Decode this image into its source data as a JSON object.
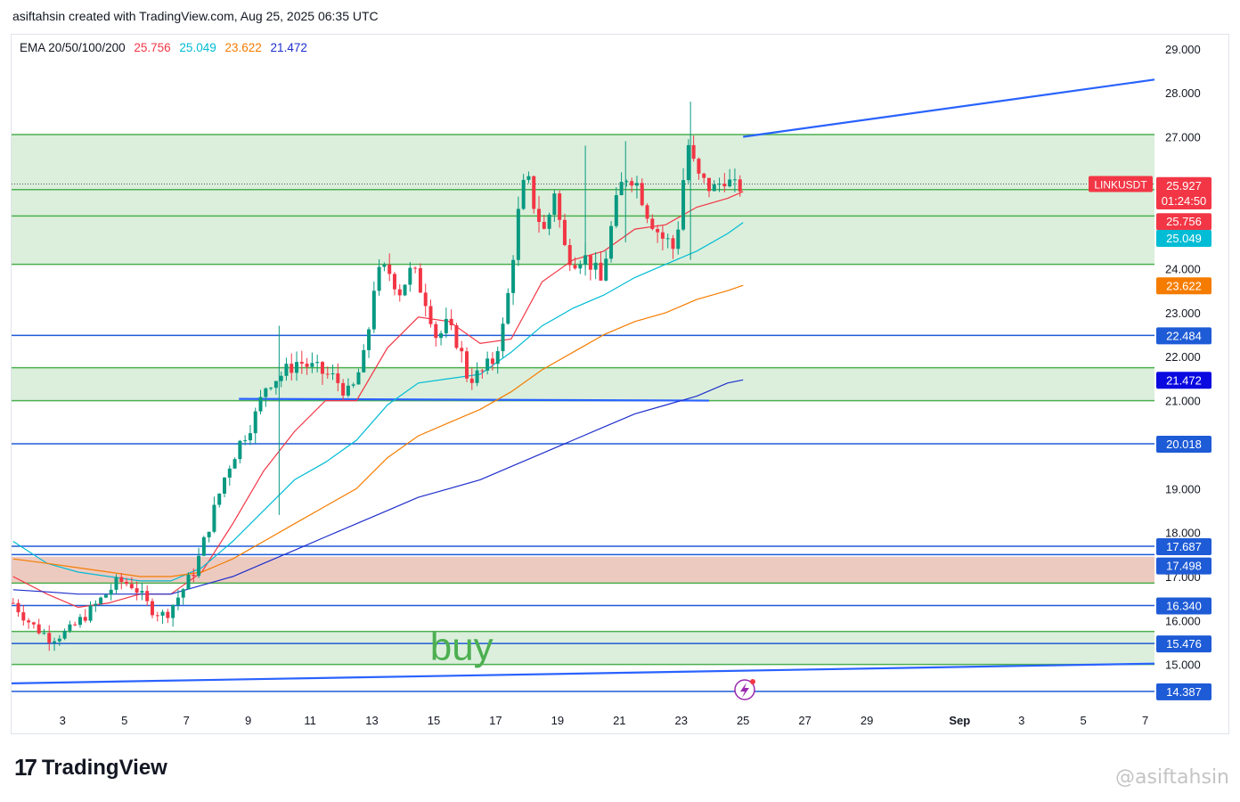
{
  "header": {
    "attribution": "asiftahsin created with TradingView.com, Aug 25, 2025 06:35 UTC"
  },
  "legend": {
    "label": "EMA 20/50/100/200",
    "values": [
      {
        "value": "25.756",
        "color": "#f23645"
      },
      {
        "value": "25.049",
        "color": "#00bcd4"
      },
      {
        "value": "23.622",
        "color": "#f57c00"
      },
      {
        "value": "21.472",
        "color": "#1e2ecc"
      }
    ]
  },
  "footer": {
    "brand": "TradingView",
    "watermark": "@asiftahsin"
  },
  "colors": {
    "up": "#089981",
    "down": "#f23645",
    "zone_green": "#4caf50",
    "zone_red": "#c85a3c",
    "hline": "#1e5bd6"
  },
  "chart_data": {
    "type": "candlestick",
    "symbol": "LINKUSDT",
    "countdown": "01:24:50",
    "last_price": 25.927,
    "ylim": [
      14.0,
      29.3
    ],
    "y_ticks": [
      15,
      16,
      17,
      18,
      19,
      20,
      21,
      22,
      23,
      24,
      25,
      26,
      27,
      28,
      29
    ],
    "y_tick_labels": [
      "15.000",
      "16.000",
      "17.000",
      "18.000",
      "19.000",
      "20.000",
      "21.000",
      "22.000",
      "23.000",
      "24.000",
      "25.000",
      "26.000",
      "27.000",
      "28.000",
      "29.000"
    ],
    "x_ticks": [
      {
        "label": "3",
        "day": 3
      },
      {
        "label": "5",
        "day": 5
      },
      {
        "label": "7",
        "day": 7
      },
      {
        "label": "9",
        "day": 9
      },
      {
        "label": "11",
        "day": 11
      },
      {
        "label": "13",
        "day": 13
      },
      {
        "label": "15",
        "day": 15
      },
      {
        "label": "17",
        "day": 17
      },
      {
        "label": "19",
        "day": 19
      },
      {
        "label": "21",
        "day": 21
      },
      {
        "label": "23",
        "day": 23
      },
      {
        "label": "25",
        "day": 25
      },
      {
        "label": "27",
        "day": 27
      },
      {
        "label": "29",
        "day": 29
      },
      {
        "label": "Sep",
        "day": 32
      },
      {
        "label": "3",
        "day": 34
      },
      {
        "label": "5",
        "day": 36
      },
      {
        "label": "7",
        "day": 38
      }
    ],
    "x_range_days": [
      1.35,
      38.3
    ],
    "price_path": [
      [
        1.4,
        16.4
      ],
      [
        2.0,
        15.9
      ],
      [
        2.6,
        15.6
      ],
      [
        3.2,
        15.75
      ],
      [
        4.0,
        16.3
      ],
      [
        4.8,
        16.9
      ],
      [
        5.3,
        16.8
      ],
      [
        5.8,
        16.3
      ],
      [
        6.3,
        16.1
      ],
      [
        6.8,
        16.6
      ],
      [
        7.3,
        17.2
      ],
      [
        7.8,
        18.3
      ],
      [
        8.3,
        19.4
      ],
      [
        8.7,
        20.0
      ],
      [
        9.2,
        20.6
      ],
      [
        9.6,
        21.4
      ],
      [
        10.1,
        21.6
      ],
      [
        10.6,
        21.9
      ],
      [
        11.2,
        21.7
      ],
      [
        11.8,
        21.5
      ],
      [
        12.3,
        21.1
      ],
      [
        12.8,
        22.1
      ],
      [
        13.1,
        23.8
      ],
      [
        13.5,
        24.0
      ],
      [
        13.9,
        23.5
      ],
      [
        14.3,
        24.0
      ],
      [
        14.8,
        23.2
      ],
      [
        15.1,
        22.4
      ],
      [
        15.4,
        22.7
      ],
      [
        15.8,
        22.3
      ],
      [
        16.1,
        21.5
      ],
      [
        16.5,
        21.6
      ],
      [
        16.9,
        21.9
      ],
      [
        17.3,
        22.8
      ],
      [
        17.5,
        24.0
      ],
      [
        17.8,
        25.6
      ],
      [
        18.0,
        26.1
      ],
      [
        18.3,
        25.3
      ],
      [
        18.6,
        24.8
      ],
      [
        18.9,
        25.8
      ],
      [
        19.2,
        24.5
      ],
      [
        19.5,
        24.2
      ],
      [
        19.8,
        24.3
      ],
      [
        20.1,
        24.1
      ],
      [
        20.4,
        23.7
      ],
      [
        20.7,
        24.8
      ],
      [
        21.0,
        25.8
      ],
      [
        21.3,
        26.2
      ],
      [
        21.6,
        25.9
      ],
      [
        21.9,
        25.3
      ],
      [
        22.2,
        24.9
      ],
      [
        22.4,
        24.7
      ],
      [
        22.6,
        24.6
      ],
      [
        22.8,
        24.4
      ],
      [
        23.0,
        25.6
      ],
      [
        23.2,
        26.9
      ],
      [
        23.5,
        26.1
      ],
      [
        23.8,
        25.9
      ],
      [
        24.1,
        25.8
      ],
      [
        24.4,
        26.1
      ],
      [
        24.7,
        25.8
      ],
      [
        25.0,
        25.927
      ]
    ],
    "highs_lows": [
      {
        "day": 23.3,
        "high": 27.8,
        "low": 24.2
      },
      {
        "day": 19.9,
        "high": 26.8,
        "low": 24.0
      },
      {
        "day": 10.0,
        "high": 22.7,
        "low": 18.4
      },
      {
        "day": 21.2,
        "high": 26.9,
        "low": 24.6
      }
    ],
    "series": [
      {
        "name": "EMA 20",
        "color": "#f23645",
        "last": 25.756,
        "points": [
          [
            1.4,
            17.0
          ],
          [
            2.5,
            16.6
          ],
          [
            3.5,
            16.3
          ],
          [
            4.5,
            16.4
          ],
          [
            5.5,
            16.6
          ],
          [
            6.5,
            16.6
          ],
          [
            7.5,
            17.1
          ],
          [
            8.5,
            18.2
          ],
          [
            9.5,
            19.4
          ],
          [
            10.5,
            20.3
          ],
          [
            11.5,
            21.0
          ],
          [
            12.5,
            21.0
          ],
          [
            13.5,
            22.2
          ],
          [
            14.5,
            22.9
          ],
          [
            15.5,
            22.8
          ],
          [
            16.5,
            22.3
          ],
          [
            17.5,
            22.4
          ],
          [
            18.5,
            23.7
          ],
          [
            19.5,
            24.2
          ],
          [
            20.5,
            24.4
          ],
          [
            21.5,
            24.9
          ],
          [
            22.5,
            25.0
          ],
          [
            23.5,
            25.4
          ],
          [
            24.5,
            25.6
          ],
          [
            25.0,
            25.756
          ]
        ]
      },
      {
        "name": "EMA 50",
        "color": "#00bcd4",
        "last": 25.049,
        "points": [
          [
            1.4,
            17.8
          ],
          [
            2.5,
            17.3
          ],
          [
            3.5,
            17.1
          ],
          [
            4.5,
            17.0
          ],
          [
            5.5,
            16.9
          ],
          [
            6.5,
            16.9
          ],
          [
            7.5,
            17.2
          ],
          [
            8.5,
            17.8
          ],
          [
            9.5,
            18.5
          ],
          [
            10.5,
            19.2
          ],
          [
            11.5,
            19.6
          ],
          [
            12.5,
            20.1
          ],
          [
            13.5,
            20.9
          ],
          [
            14.5,
            21.4
          ],
          [
            15.5,
            21.5
          ],
          [
            16.5,
            21.6
          ],
          [
            17.5,
            22.1
          ],
          [
            18.5,
            22.7
          ],
          [
            19.5,
            23.1
          ],
          [
            20.5,
            23.4
          ],
          [
            21.5,
            23.8
          ],
          [
            22.5,
            24.1
          ],
          [
            23.5,
            24.4
          ],
          [
            24.5,
            24.8
          ],
          [
            25.0,
            25.049
          ]
        ]
      },
      {
        "name": "EMA 100",
        "color": "#f57c00",
        "last": 23.622,
        "points": [
          [
            1.4,
            17.4
          ],
          [
            2.5,
            17.3
          ],
          [
            3.5,
            17.2
          ],
          [
            4.5,
            17.1
          ],
          [
            5.5,
            17.0
          ],
          [
            6.5,
            17.0
          ],
          [
            7.5,
            17.1
          ],
          [
            8.5,
            17.4
          ],
          [
            9.5,
            17.8
          ],
          [
            10.5,
            18.2
          ],
          [
            11.5,
            18.6
          ],
          [
            12.5,
            19.0
          ],
          [
            13.5,
            19.7
          ],
          [
            14.5,
            20.2
          ],
          [
            15.5,
            20.5
          ],
          [
            16.5,
            20.8
          ],
          [
            17.5,
            21.2
          ],
          [
            18.5,
            21.7
          ],
          [
            19.5,
            22.1
          ],
          [
            20.5,
            22.5
          ],
          [
            21.5,
            22.8
          ],
          [
            22.5,
            23.0
          ],
          [
            23.5,
            23.3
          ],
          [
            24.5,
            23.5
          ],
          [
            25.0,
            23.622
          ]
        ]
      },
      {
        "name": "EMA 200",
        "color": "#1e2ecc",
        "last": 21.472,
        "points": [
          [
            1.4,
            16.7
          ],
          [
            2.5,
            16.65
          ],
          [
            3.5,
            16.6
          ],
          [
            4.5,
            16.6
          ],
          [
            5.5,
            16.6
          ],
          [
            6.5,
            16.6
          ],
          [
            7.5,
            16.8
          ],
          [
            8.5,
            17.0
          ],
          [
            9.5,
            17.3
          ],
          [
            10.5,
            17.6
          ],
          [
            11.5,
            17.9
          ],
          [
            12.5,
            18.2
          ],
          [
            13.5,
            18.5
          ],
          [
            14.5,
            18.8
          ],
          [
            15.5,
            19.0
          ],
          [
            16.5,
            19.2
          ],
          [
            17.5,
            19.5
          ],
          [
            18.5,
            19.8
          ],
          [
            19.5,
            20.1
          ],
          [
            20.5,
            20.4
          ],
          [
            21.5,
            20.7
          ],
          [
            22.5,
            20.9
          ],
          [
            23.5,
            21.1
          ],
          [
            24.5,
            21.4
          ],
          [
            25.0,
            21.472
          ]
        ]
      }
    ],
    "zones": [
      {
        "from": 25.2,
        "to": 27.05,
        "color": "#4caf50"
      },
      {
        "from": 24.1,
        "to": 25.2,
        "color": "#4caf50"
      },
      {
        "from": 21.0,
        "to": 21.75,
        "color": "#4caf50"
      },
      {
        "from": 16.85,
        "to": 17.45,
        "color": "#c85a3c"
      },
      {
        "from": 15.0,
        "to": 15.75,
        "color": "#4caf50"
      }
    ],
    "zone_lines": [
      27.05,
      25.8,
      25.2,
      24.1,
      21.75,
      21.0,
      16.85,
      15.75,
      15.0
    ],
    "horizontal_levels": [
      22.484,
      20.018,
      17.687,
      17.498,
      16.34,
      15.476,
      14.387
    ],
    "trendlines": [
      {
        "from": [
          25.0,
          27.0
        ],
        "to": [
          38.3,
          28.3
        ]
      },
      {
        "from": [
          1.35,
          14.57
        ],
        "to": [
          38.3,
          15.02
        ]
      },
      {
        "from": [
          8.7,
          21.04
        ],
        "to": [
          23.9,
          21.0
        ]
      }
    ],
    "annotations": [
      {
        "text": "buy",
        "day": 15.9,
        "price": 15.1,
        "color": "#4caf50"
      }
    ],
    "axis_labels": [
      {
        "text": "25.927",
        "price": 25.9,
        "bg": "#f23645",
        "fg": "#ffffff"
      },
      {
        "text": "01:24:50",
        "price": 25.55,
        "bg": "#f23645",
        "fg": "#ffffff"
      },
      {
        "text": "25.756",
        "price": 25.08,
        "bg": "#f23645",
        "fg": "#ffffff"
      },
      {
        "text": "25.049",
        "price": 24.7,
        "bg": "#00bcd4",
        "fg": "#ffffff"
      },
      {
        "text": "23.622",
        "price": 23.62,
        "bg": "#f57c00",
        "fg": "#ffffff"
      },
      {
        "text": "22.484",
        "price": 22.484,
        "bg": "#1e5bd6",
        "fg": "#ffffff"
      },
      {
        "text": "21.472",
        "price": 21.472,
        "bg": "#0a0ae0",
        "fg": "#ffffff"
      },
      {
        "text": "20.018",
        "price": 20.018,
        "bg": "#1e5bd6",
        "fg": "#ffffff"
      },
      {
        "text": "17.687",
        "price": 17.687,
        "bg": "#1e5bd6",
        "fg": "#ffffff"
      },
      {
        "text": "17.498",
        "price": 17.25,
        "bg": "#1e5bd6",
        "fg": "#ffffff"
      },
      {
        "text": "16.340",
        "price": 16.34,
        "bg": "#1e5bd6",
        "fg": "#ffffff"
      },
      {
        "text": "15.476",
        "price": 15.476,
        "bg": "#1e5bd6",
        "fg": "#ffffff"
      },
      {
        "text": "14.387",
        "price": 14.387,
        "bg": "#1e5bd6",
        "fg": "#ffffff"
      }
    ]
  }
}
